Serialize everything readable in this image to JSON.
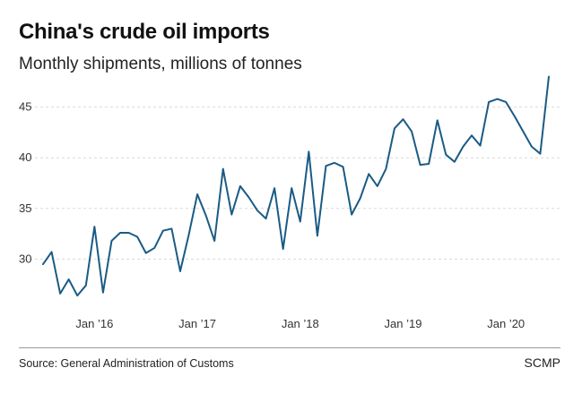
{
  "header": {
    "title": "China's crude oil imports",
    "subtitle": "Monthly shipments, millions of tonnes"
  },
  "footer": {
    "source": "Source: General Administration of Customs",
    "brand": "SCMP"
  },
  "colors": {
    "line": "#1a5b85",
    "grid": "#d9d9d9",
    "rule": "#999999"
  },
  "chart_data": {
    "type": "line",
    "title": "China's crude oil imports",
    "subtitle": "Monthly shipments, millions of tonnes",
    "xlabel": "",
    "ylabel": "",
    "ylim": [
      25,
      48.5
    ],
    "yticks": [
      30,
      35,
      40,
      45
    ],
    "grid": true,
    "x_start": "2015-07",
    "x_end": "2020-05",
    "xtick_labels": [
      {
        "label": "Jan ’16",
        "index": 6
      },
      {
        "label": "Jan ’17",
        "index": 18
      },
      {
        "label": "Jan ’18",
        "index": 30
      },
      {
        "label": "Jan ’19",
        "index": 42
      },
      {
        "label": "Jan ’20",
        "index": 54
      }
    ],
    "series": [
      {
        "name": "Crude oil imports",
        "values": [
          29.5,
          30.7,
          26.6,
          28.0,
          26.4,
          27.4,
          33.2,
          26.7,
          31.8,
          32.6,
          32.6,
          32.2,
          30.6,
          31.1,
          32.8,
          33.0,
          28.8,
          32.4,
          36.4,
          34.3,
          31.8,
          38.9,
          34.4,
          37.2,
          36.1,
          34.8,
          34.0,
          37.0,
          31.0,
          37.0,
          33.7,
          40.6,
          32.3,
          39.2,
          39.5,
          39.1,
          34.4,
          36.0,
          38.4,
          37.2,
          38.9,
          42.9,
          43.8,
          42.6,
          39.3,
          39.4,
          43.7,
          40.3,
          39.6,
          41.1,
          42.2,
          41.2,
          45.5,
          45.8,
          45.5,
          44.1,
          42.6,
          41.1,
          40.4,
          48.0
        ]
      }
    ]
  }
}
